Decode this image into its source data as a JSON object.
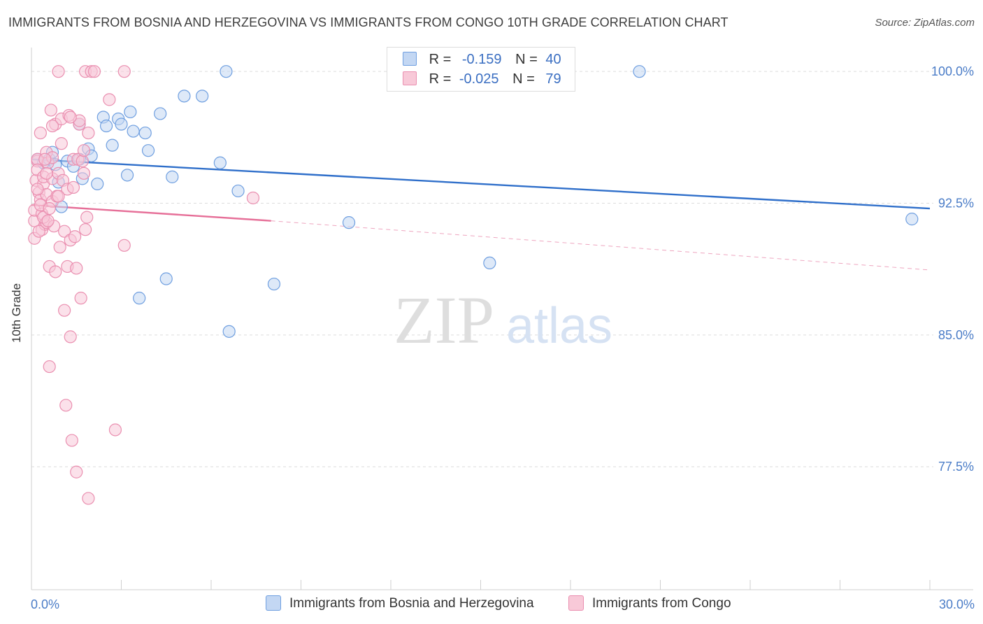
{
  "title": "IMMIGRANTS FROM BOSNIA AND HERZEGOVINA VS IMMIGRANTS FROM CONGO 10TH GRADE CORRELATION CHART",
  "source": "Source: ZipAtlas.com",
  "watermark": {
    "zip": "ZIP",
    "atlas": "atlas"
  },
  "legend": {
    "rows": [
      {
        "r_label": "R =",
        "r_value": "-0.159",
        "n_label": "N =",
        "n_value": "40",
        "color": "#a9c7ef"
      },
      {
        "r_label": "R =",
        "r_value": "-0.025",
        "n_label": "N =",
        "n_value": "79",
        "color": "#f6b6cb"
      }
    ]
  },
  "chart_data": {
    "type": "scatter",
    "title": "IMMIGRANTS FROM BOSNIA AND HERZEGOVINA VS IMMIGRANTS FROM CONGO 10TH GRADE CORRELATION CHART",
    "xlabel": "",
    "ylabel": "10th Grade",
    "xlim": [
      0,
      30
    ],
    "ylim": [
      70.5,
      101.6
    ],
    "x_ticks": [
      "0.0%",
      "30.0%"
    ],
    "y_ticks": [
      {
        "value": 100.0,
        "label": "100.0%"
      },
      {
        "value": 92.5,
        "label": "92.5%"
      },
      {
        "value": 85.0,
        "label": "85.0%"
      },
      {
        "value": 77.5,
        "label": "77.5%"
      }
    ],
    "grid": true,
    "legend_position": "top-center",
    "series": [
      {
        "name": "Immigrants from Bosnia and Herzegovina",
        "color": "#6f9fe0",
        "fill": "#c3d7f3",
        "points": [
          [
            0.2,
            95.0
          ],
          [
            0.4,
            94.8
          ],
          [
            0.6,
            95.0
          ],
          [
            0.7,
            95.4
          ],
          [
            0.8,
            94.7
          ],
          [
            0.9,
            93.7
          ],
          [
            1.0,
            92.3
          ],
          [
            1.2,
            94.9
          ],
          [
            1.4,
            94.6
          ],
          [
            1.6,
            97.0
          ],
          [
            1.7,
            93.9
          ],
          [
            1.9,
            95.6
          ],
          [
            2.0,
            95.2
          ],
          [
            2.2,
            93.6
          ],
          [
            2.4,
            97.4
          ],
          [
            2.5,
            96.9
          ],
          [
            2.7,
            95.8
          ],
          [
            2.9,
            97.3
          ],
          [
            3.0,
            97.0
          ],
          [
            3.2,
            94.1
          ],
          [
            3.3,
            97.7
          ],
          [
            3.4,
            96.6
          ],
          [
            3.6,
            87.1
          ],
          [
            3.8,
            96.5
          ],
          [
            3.9,
            95.5
          ],
          [
            4.3,
            97.6
          ],
          [
            4.5,
            88.2
          ],
          [
            4.7,
            94.0
          ],
          [
            5.1,
            98.6
          ],
          [
            5.7,
            98.6
          ],
          [
            6.3,
            94.8
          ],
          [
            6.5,
            100.0
          ],
          [
            6.6,
            85.2
          ],
          [
            6.9,
            93.2
          ],
          [
            8.1,
            87.9
          ],
          [
            10.6,
            91.4
          ],
          [
            15.3,
            89.1
          ],
          [
            20.3,
            100.0
          ],
          [
            29.4,
            91.6
          ],
          [
            1.6,
            95.0
          ]
        ],
        "trend": {
          "x": [
            0,
            30
          ],
          "y": [
            95.0,
            92.2
          ],
          "style": "solid"
        }
      },
      {
        "name": "Immigrants from Congo",
        "color": "#ea8fb0",
        "fill": "#f8c9d8",
        "points": [
          [
            0.1,
            90.5
          ],
          [
            0.1,
            91.5
          ],
          [
            0.1,
            92.1
          ],
          [
            0.15,
            93.8
          ],
          [
            0.2,
            94.9
          ],
          [
            0.2,
            95.0
          ],
          [
            0.2,
            94.4
          ],
          [
            0.25,
            93.1
          ],
          [
            0.3,
            96.5
          ],
          [
            0.3,
            92.7
          ],
          [
            0.35,
            91.0
          ],
          [
            0.35,
            91.9
          ],
          [
            0.4,
            93.6
          ],
          [
            0.4,
            94.0
          ],
          [
            0.45,
            91.3
          ],
          [
            0.5,
            95.4
          ],
          [
            0.5,
            93.0
          ],
          [
            0.5,
            91.4
          ],
          [
            0.55,
            94.8
          ],
          [
            0.6,
            88.9
          ],
          [
            0.6,
            83.2
          ],
          [
            0.65,
            97.8
          ],
          [
            0.7,
            92.6
          ],
          [
            0.7,
            95.1
          ],
          [
            0.7,
            93.9
          ],
          [
            0.75,
            91.2
          ],
          [
            0.8,
            88.6
          ],
          [
            0.8,
            97.0
          ],
          [
            0.85,
            92.9
          ],
          [
            0.9,
            100.0
          ],
          [
            0.9,
            94.2
          ],
          [
            0.95,
            90.0
          ],
          [
            1.0,
            95.9
          ],
          [
            1.0,
            97.3
          ],
          [
            1.05,
            93.8
          ],
          [
            1.1,
            90.9
          ],
          [
            1.1,
            86.4
          ],
          [
            1.15,
            81.0
          ],
          [
            1.2,
            93.3
          ],
          [
            1.2,
            88.9
          ],
          [
            1.25,
            97.5
          ],
          [
            1.3,
            90.4
          ],
          [
            1.3,
            84.9
          ],
          [
            1.35,
            79.0
          ],
          [
            1.4,
            95.0
          ],
          [
            1.4,
            93.4
          ],
          [
            1.45,
            90.6
          ],
          [
            1.5,
            88.8
          ],
          [
            1.5,
            77.2
          ],
          [
            1.55,
            95.0
          ],
          [
            1.6,
            97.0
          ],
          [
            1.65,
            87.1
          ],
          [
            1.7,
            94.9
          ],
          [
            1.75,
            94.2
          ],
          [
            1.75,
            95.5
          ],
          [
            1.8,
            91.0
          ],
          [
            1.8,
            100.0
          ],
          [
            1.85,
            91.7
          ],
          [
            1.9,
            96.5
          ],
          [
            1.9,
            75.7
          ],
          [
            2.0,
            100.0
          ],
          [
            2.1,
            100.0
          ],
          [
            2.6,
            98.4
          ],
          [
            2.8,
            79.6
          ],
          [
            3.1,
            100.0
          ],
          [
            3.1,
            90.1
          ],
          [
            7.4,
            92.8
          ],
          [
            0.3,
            92.4
          ],
          [
            0.4,
            91.7
          ],
          [
            0.6,
            92.2
          ],
          [
            0.9,
            92.9
          ],
          [
            0.5,
            94.2
          ],
          [
            0.25,
            90.9
          ],
          [
            0.45,
            95.0
          ],
          [
            1.6,
            97.2
          ],
          [
            0.2,
            93.3
          ],
          [
            0.7,
            96.9
          ],
          [
            1.3,
            97.4
          ],
          [
            0.55,
            91.5
          ]
        ],
        "trend": {
          "x": [
            0,
            8
          ],
          "y": [
            92.4,
            91.5
          ],
          "style": "solid"
        },
        "trend_extension": {
          "x": [
            8,
            30
          ],
          "y": [
            91.5,
            88.7
          ],
          "style": "dashed"
        }
      }
    ]
  },
  "bottom_legend": [
    {
      "label": "Immigrants from Bosnia and Herzegovina",
      "color": "#6f9fe0",
      "fill": "#c3d7f3"
    },
    {
      "label": "Immigrants from Congo",
      "color": "#ea8fb0",
      "fill": "#f8c9d8"
    }
  ]
}
